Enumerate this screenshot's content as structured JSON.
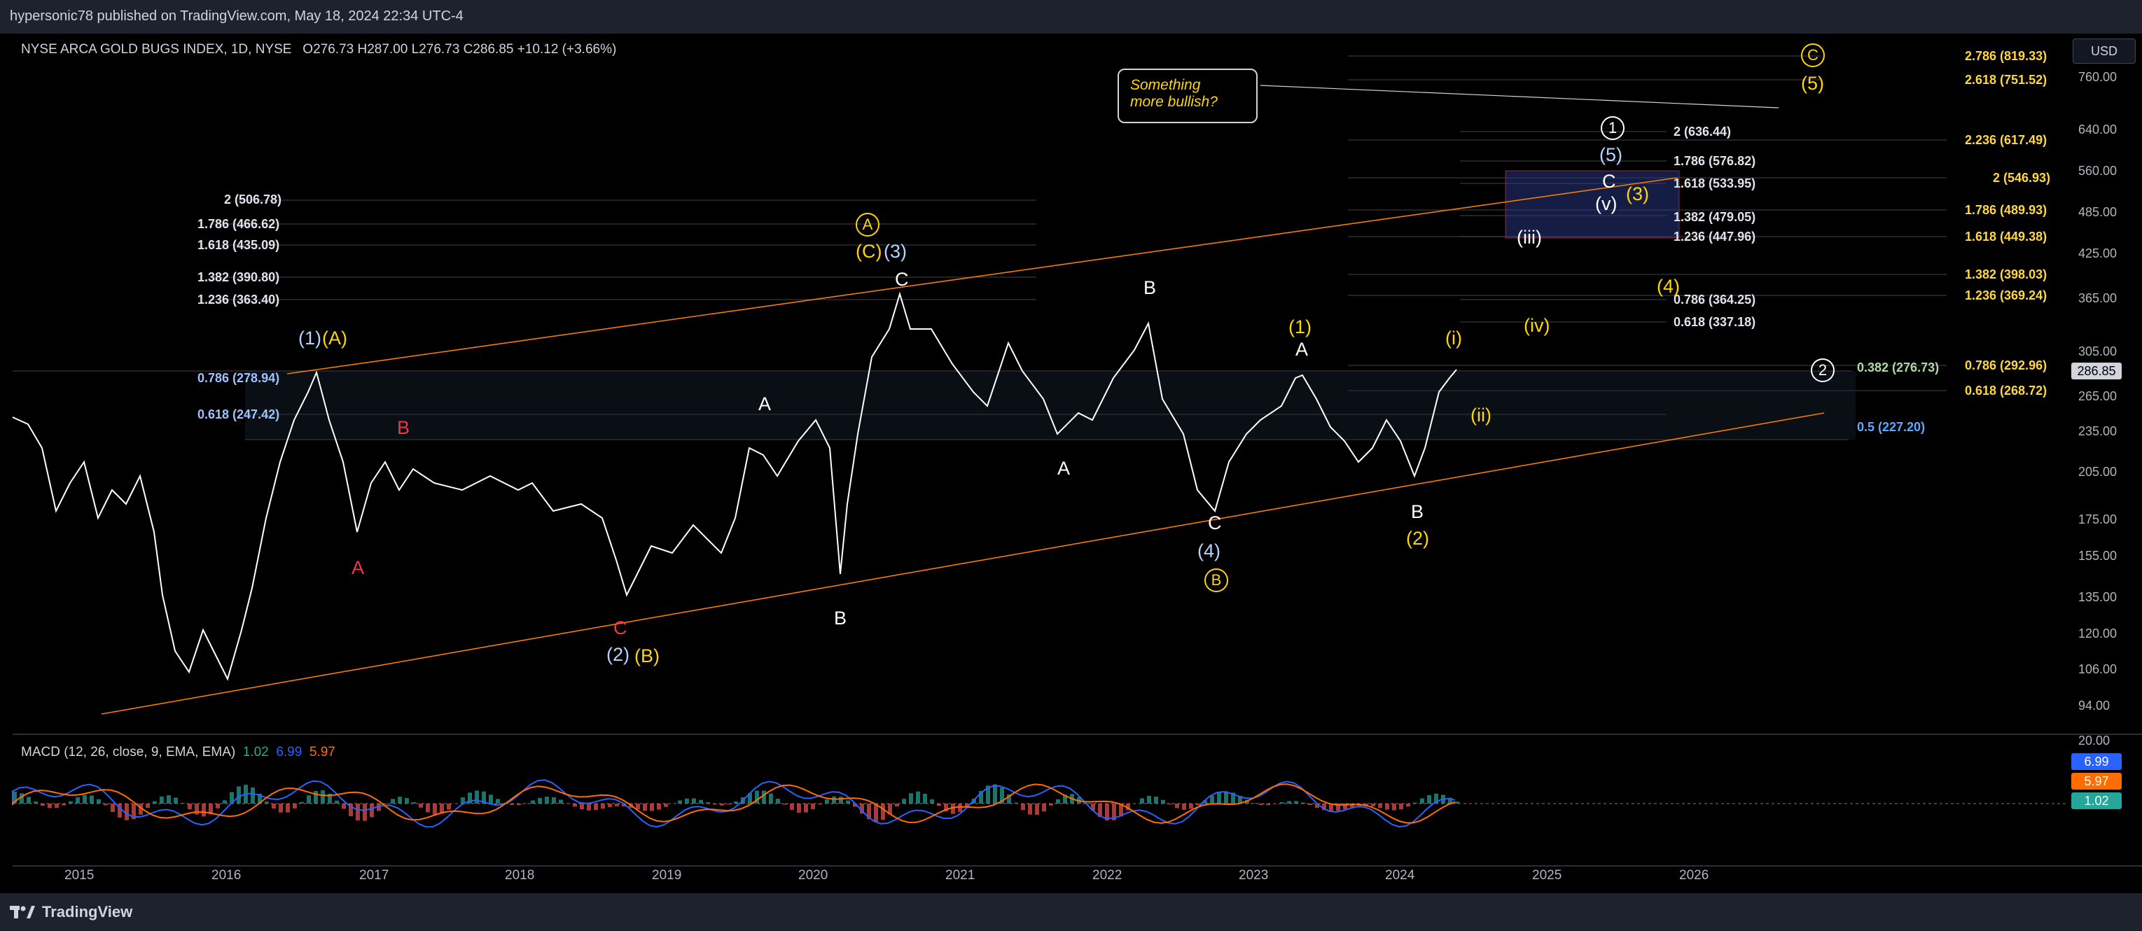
{
  "top_bar": {
    "published": "hypersonic78 published on TradingView.com, May 18, 2024 22:34 UTC-4"
  },
  "legend": {
    "symbol": "NYSE ARCA GOLD BUGS INDEX, 1D, NYSE",
    "open_label": "O",
    "open": "276.73",
    "high_label": "H",
    "high": "287.00",
    "low_label": "L",
    "low": "276.73",
    "close_label": "C",
    "close": "286.85",
    "change": "+10.12 (+3.66%)"
  },
  "currency_button": "USD",
  "price_scale": {
    "ticks": [
      "760.00",
      "640.00",
      "560.00",
      "485.00",
      "425.00",
      "365.00",
      "305.00",
      "265.00",
      "235.00",
      "205.00",
      "175.00",
      "155.00",
      "135.00",
      "120.00",
      "106.00",
      "94.00"
    ],
    "last_price": "286.85",
    "macd_ticks": [
      "20.00"
    ],
    "macd_badges": [
      "6.99",
      "5.97",
      "1.02"
    ]
  },
  "time_axis": [
    "2015",
    "2016",
    "2017",
    "2018",
    "2019",
    "2020",
    "2021",
    "2022",
    "2023",
    "2024",
    "2025",
    "2026"
  ],
  "macd": {
    "title": "MACD (12, 26, close, 9, EMA, EMA)",
    "hist": "1.02",
    "macd": "6.99",
    "signal": "5.97"
  },
  "callout": {
    "line1": "Something",
    "line2": "more bullish?"
  },
  "fib_left": [
    "2 (506.78)",
    "1.786 (466.62)",
    "1.618 (435.09)",
    "1.382 (390.80)",
    "1.236 (363.40)",
    "0.786 (278.94)",
    "0.618 (247.42)"
  ],
  "fib_mid": [
    "2 (636.44)",
    "1.786 (576.82)",
    "1.618 (533.95)",
    "1.382 (479.05)",
    "1.236 (447.96)",
    "0.786 (364.25)",
    "0.618 (337.18)"
  ],
  "fib_right": [
    "2.786 (819.33)",
    "2.618 (751.52)",
    "2.236 (617.49)",
    "2 (546.93)",
    "1.786 (489.93)",
    "1.618 (449.38)",
    "1.382 (398.03)",
    "1.236 (369.24)",
    "0.786 (292.96)",
    "0.618 (268.72)"
  ],
  "fib_green": "0.382 (276.73)",
  "fib_blue": "0.5 (227.20)",
  "wave_labels": {
    "w1_A": "(1)",
    "w1_A_y": "(A)",
    "red_B": "B",
    "red_A": "A",
    "red_C": "C",
    "w2": "(2)",
    "w2_B": "(B)",
    "A_2019": "A",
    "B_2020": "B",
    "circ_A": "A",
    "wC": "(C)",
    "w3": "(3)",
    "C_top": "C",
    "B_2022": "B",
    "A_2021": "A",
    "C_2022": "C",
    "w4": "(4)",
    "circ_B": "B",
    "y1": "(1)",
    "A_2023": "A",
    "B_2024": "B",
    "y2": "(2)",
    "i": "(i)",
    "ii": "(ii)",
    "iii": "(iii)",
    "iv": "(iv)",
    "v": "(v)",
    "circ1": "1",
    "w5_blue": "(5)",
    "C_box": "C",
    "y3": "(3)",
    "y4": "(4)",
    "circ2": "2",
    "circC": "C",
    "y5": "(5)"
  },
  "footer": {
    "brand": "TradingView"
  },
  "colors": {
    "up": "#ffffff",
    "trend": "#f57c00",
    "macd_line": "#2962ff",
    "signal_line": "#ff6d00",
    "hist_pos": "#26a69a",
    "hist_neg": "#ef5350"
  }
}
